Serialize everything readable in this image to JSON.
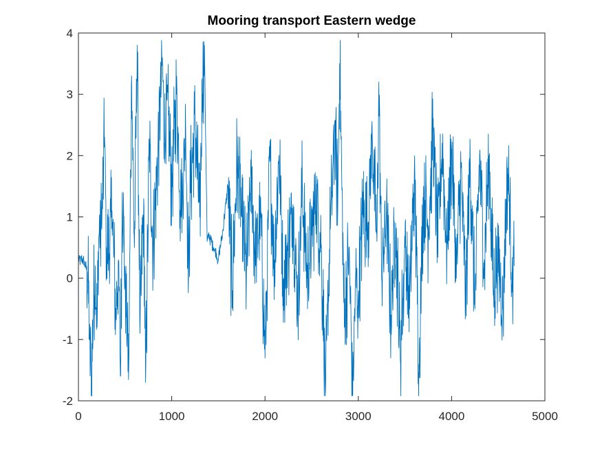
{
  "chart_data": {
    "type": "line",
    "title": "Mooring transport Eastern wedge",
    "xlabel": "",
    "ylabel": "",
    "xlim": [
      0,
      5000
    ],
    "ylim": [
      -2,
      4
    ],
    "xticks": [
      0,
      1000,
      2000,
      3000,
      4000,
      5000
    ],
    "yticks": [
      -2,
      -1,
      0,
      1,
      2,
      3,
      4
    ],
    "xtick_labels": [
      "0",
      "1000",
      "2000",
      "3000",
      "4000",
      "5000"
    ],
    "ytick_labels": [
      "-2",
      "-1",
      "0",
      "1",
      "2",
      "3",
      "4"
    ],
    "grid": false,
    "legend": "none",
    "series": [
      {
        "color": "#0072BD",
        "x": [
          0,
          50,
          100,
          120,
          140,
          160,
          180,
          200,
          220,
          250,
          280,
          300,
          330,
          360,
          400,
          430,
          450,
          470,
          500,
          540,
          570,
          600,
          630,
          660,
          700,
          720,
          760,
          800,
          850,
          900,
          920,
          950,
          1000,
          1050,
          1100,
          1150,
          1180,
          1200,
          1250,
          1300,
          1330,
          1350,
          1380,
          1400,
          1450,
          1500,
          1550,
          1600,
          1650,
          1700,
          1750,
          1800,
          1850,
          1900,
          1950,
          2000,
          2050,
          2100,
          2150,
          2200,
          2250,
          2300,
          2350,
          2400,
          2450,
          2500,
          2550,
          2600,
          2650,
          2700,
          2750,
          2780,
          2800,
          2850,
          2900,
          2940,
          2970,
          3000,
          3050,
          3100,
          3150,
          3200,
          3220,
          3250,
          3300,
          3350,
          3400,
          3450,
          3500,
          3550,
          3600,
          3650,
          3700,
          3750,
          3800,
          3850,
          3900,
          3950,
          4000,
          4050,
          4100,
          4150,
          4200,
          4250,
          4300,
          4350,
          4400,
          4450,
          4500,
          4550,
          4600,
          4650,
          4670
        ],
        "y": [
          0.3,
          0.3,
          0.1,
          -1.0,
          -1.8,
          -0.5,
          0.2,
          -0.8,
          0.7,
          0.8,
          2.3,
          0.5,
          0.4,
          1.1,
          -0.5,
          0.3,
          -1.6,
          1.4,
          0.1,
          -1.4,
          3.3,
          0.5,
          3.8,
          -0.9,
          1.3,
          -1.7,
          2.2,
          0.5,
          2.0,
          3.6,
          2.2,
          2.9,
          1.5,
          3.0,
          1.0,
          2.4,
          0.0,
          1.5,
          2.5,
          1.0,
          3.0,
          3.8,
          0.6,
          0.7,
          0.5,
          0.3,
          0.8,
          1.5,
          -0.2,
          1.9,
          1.0,
          0.0,
          1.7,
          0.2,
          1.2,
          -1.3,
          1.9,
          0.3,
          2.0,
          0.0,
          0.5,
          1.2,
          -0.5,
          1.5,
          0.0,
          0.7,
          1.4,
          0.5,
          -1.8,
          0.8,
          2.4,
          1.2,
          3.5,
          -0.8,
          0.5,
          -1.9,
          0.0,
          -0.3,
          1.1,
          0.8,
          2.3,
          0.6,
          3.2,
          0.0,
          1.0,
          -0.6,
          0.9,
          -1.3,
          0.5,
          -0.5,
          1.7,
          -1.4,
          1.5,
          0.8,
          2.4,
          0.5,
          2.2,
          0.4,
          2.1,
          0.0,
          1.8,
          -0.3,
          1.9,
          -0.5,
          2.0,
          0.3,
          2.0,
          -0.2,
          0.5,
          -0.5,
          1.8,
          0.1,
          0.2
        ]
      }
    ]
  }
}
